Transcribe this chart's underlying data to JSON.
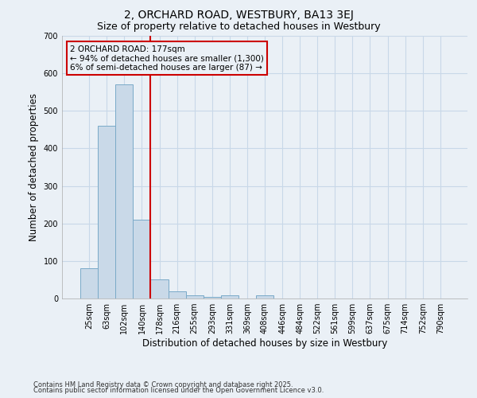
{
  "title1": "2, ORCHARD ROAD, WESTBURY, BA13 3EJ",
  "title2": "Size of property relative to detached houses in Westbury",
  "xlabel": "Distribution of detached houses by size in Westbury",
  "ylabel": "Number of detached properties",
  "categories": [
    "25sqm",
    "63sqm",
    "102sqm",
    "140sqm",
    "178sqm",
    "216sqm",
    "255sqm",
    "293sqm",
    "331sqm",
    "369sqm",
    "408sqm",
    "446sqm",
    "484sqm",
    "522sqm",
    "561sqm",
    "599sqm",
    "637sqm",
    "675sqm",
    "714sqm",
    "752sqm",
    "790sqm"
  ],
  "values": [
    80,
    460,
    570,
    210,
    50,
    20,
    8,
    5,
    8,
    0,
    8,
    0,
    0,
    0,
    0,
    0,
    0,
    0,
    0,
    0,
    0
  ],
  "bar_color": "#c9d9e8",
  "bar_edge_color": "#7aaac8",
  "grid_color": "#c8d8e8",
  "bg_color": "#eaf0f6",
  "vline_color": "#cc0000",
  "annotation_text": "2 ORCHARD ROAD: 177sqm\n← 94% of detached houses are smaller (1,300)\n6% of semi-detached houses are larger (87) →",
  "annotation_box_color": "#cc0000",
  "ylim": [
    0,
    700
  ],
  "yticks": [
    0,
    100,
    200,
    300,
    400,
    500,
    600,
    700
  ],
  "footnote1": "Contains HM Land Registry data © Crown copyright and database right 2025.",
  "footnote2": "Contains public sector information licensed under the Open Government Licence v3.0.",
  "title1_fontsize": 10,
  "title2_fontsize": 9,
  "tick_fontsize": 7,
  "label_fontsize": 8.5,
  "annotation_fontsize": 7.5,
  "footnote_fontsize": 6
}
